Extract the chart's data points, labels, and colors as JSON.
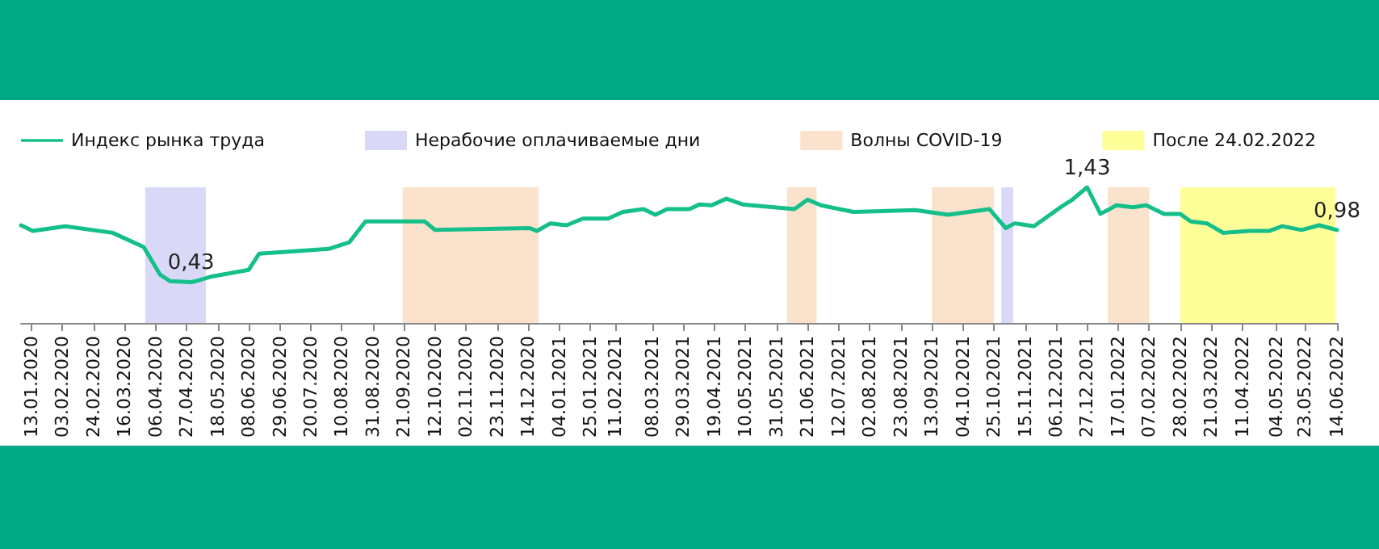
{
  "chart_data": {
    "type": "line",
    "legend": "top left",
    "marker": "none",
    "line_style": "solid",
    "grid": false,
    "tick_labels": "x",
    "xlim": [
      "2020-01-06",
      "2022-06-14"
    ],
    "xticks": [
      {
        "value": "2020-01-13",
        "label": "13.01.2020"
      },
      {
        "value": "2020-02-03",
        "label": "03.02.2020"
      },
      {
        "value": "2020-02-24",
        "label": "24.02.2020"
      },
      {
        "value": "2020-03-16",
        "label": "16.03.2020"
      },
      {
        "value": "2020-04-06",
        "label": "06.04.2020"
      },
      {
        "value": "2020-04-27",
        "label": "27.04.2020"
      },
      {
        "value": "2020-05-18",
        "label": "18.05.2020"
      },
      {
        "value": "2020-06-08",
        "label": "08.06.2020"
      },
      {
        "value": "2020-06-29",
        "label": "29.06.2020"
      },
      {
        "value": "2020-07-20",
        "label": "20.07.2020"
      },
      {
        "value": "2020-08-10",
        "label": "10.08.2020"
      },
      {
        "value": "2020-08-31",
        "label": "31.08.2020"
      },
      {
        "value": "2020-09-21",
        "label": "21.09.2020"
      },
      {
        "value": "2020-10-12",
        "label": "12.10.2020"
      },
      {
        "value": "2020-11-02",
        "label": "02.11.2020"
      },
      {
        "value": "2020-11-23",
        "label": "23.11.2020"
      },
      {
        "value": "2020-12-14",
        "label": "14.12.2020"
      },
      {
        "value": "2021-01-04",
        "label": "04.01.2021"
      },
      {
        "value": "2021-01-25",
        "label": "25.01.2021"
      },
      {
        "value": "2021-02-11",
        "label": "11.02.2021"
      },
      {
        "value": "2021-03-08",
        "label": "08.03.2021"
      },
      {
        "value": "2021-03-29",
        "label": "29.03.2021"
      },
      {
        "value": "2021-04-19",
        "label": "19.04.2021"
      },
      {
        "value": "2021-05-10",
        "label": "10.05.2021"
      },
      {
        "value": "2021-05-31",
        "label": "31.05.2021"
      },
      {
        "value": "2021-06-21",
        "label": "21.06.2021"
      },
      {
        "value": "2021-07-12",
        "label": "12.07.2021"
      },
      {
        "value": "2021-08-02",
        "label": "02.08.2021"
      },
      {
        "value": "2021-08-23",
        "label": "23.08.2021"
      },
      {
        "value": "2021-09-13",
        "label": "13.09.2021"
      },
      {
        "value": "2021-10-04",
        "label": "04.10.2021"
      },
      {
        "value": "2021-10-25",
        "label": "25.10.2021"
      },
      {
        "value": "2021-11-15",
        "label": "15.11.2021"
      },
      {
        "value": "2021-12-06",
        "label": "06.12.2021"
      },
      {
        "value": "2021-12-27",
        "label": "27.12.2021"
      },
      {
        "value": "2022-01-17",
        "label": "17.01.2022"
      },
      {
        "value": "2022-02-07",
        "label": "07.02.2022"
      },
      {
        "value": "2022-02-28",
        "label": "28.02.2022"
      },
      {
        "value": "2022-03-21",
        "label": "21.03.2022"
      },
      {
        "value": "2022-04-11",
        "label": "11.04.2022"
      },
      {
        "value": "2022-05-04",
        "label": "04.05.2022"
      },
      {
        "value": "2022-05-23",
        "label": "23.05.2022"
      },
      {
        "value": "2022-06-14",
        "label": "14.06.2022"
      }
    ],
    "series": [
      {
        "name": "Индекс рынка труда",
        "color": "#14bf8a",
        "x": [
          "2020-01-06",
          "2020-01-14",
          "2020-02-05",
          "2020-03-08",
          "2020-03-29",
          "2020-04-09",
          "2020-04-16",
          "2020-04-30",
          "2020-05-03",
          "2020-05-14",
          "2020-06-08",
          "2020-06-15",
          "2020-08-01",
          "2020-08-15",
          "2020-08-26",
          "2020-10-05",
          "2020-10-12",
          "2020-12-15",
          "2020-12-20",
          "2020-12-29",
          "2021-01-09",
          "2021-01-20",
          "2021-02-06",
          "2021-02-16",
          "2021-03-02",
          "2021-03-10",
          "2021-03-18",
          "2021-04-02",
          "2021-04-09",
          "2021-04-17",
          "2021-04-27",
          "2021-05-08",
          "2021-06-12",
          "2021-06-21",
          "2021-06-30",
          "2021-07-22",
          "2021-09-02",
          "2021-09-24",
          "2021-10-22",
          "2021-11-02",
          "2021-11-08",
          "2021-11-21",
          "2021-12-09",
          "2021-12-17",
          "2021-12-27",
          "2022-01-05",
          "2022-01-16",
          "2022-01-27",
          "2022-02-05",
          "2022-02-17",
          "2022-02-28",
          "2022-03-07",
          "2022-03-18",
          "2022-03-29",
          "2022-04-16",
          "2022-04-29",
          "2022-05-08",
          "2022-05-21",
          "2022-06-02",
          "2022-06-14"
        ],
        "values": [
          1.03,
          0.97,
          1.02,
          0.95,
          0.8,
          0.51,
          0.44,
          0.43,
          0.44,
          0.49,
          0.56,
          0.73,
          0.78,
          0.85,
          1.07,
          1.07,
          0.98,
          1.0,
          0.97,
          1.05,
          1.03,
          1.1,
          1.1,
          1.17,
          1.2,
          1.14,
          1.2,
          1.2,
          1.25,
          1.24,
          1.31,
          1.25,
          1.2,
          1.3,
          1.24,
          1.17,
          1.19,
          1.14,
          1.2,
          1.0,
          1.05,
          1.02,
          1.22,
          1.3,
          1.43,
          1.15,
          1.24,
          1.22,
          1.24,
          1.15,
          1.15,
          1.07,
          1.05,
          0.95,
          0.97,
          0.97,
          1.02,
          0.98,
          1.03,
          0.98
        ],
        "value_labels": [
          null,
          null,
          null,
          null,
          null,
          null,
          null,
          "0,43",
          null,
          null,
          null,
          null,
          null,
          null,
          null,
          null,
          null,
          null,
          null,
          null,
          null,
          null,
          null,
          null,
          null,
          null,
          null,
          null,
          null,
          null,
          null,
          null,
          null,
          null,
          null,
          null,
          null,
          null,
          null,
          null,
          null,
          null,
          null,
          null,
          "1,43",
          null,
          null,
          null,
          null,
          null,
          null,
          null,
          null,
          null,
          null,
          null,
          null,
          null,
          null,
          "0,98"
        ]
      }
    ],
    "bands": [
      {
        "axis": "x",
        "from": "2020-03-30",
        "to": "2020-05-10",
        "label": "Нерабочие оплачиваемые дни",
        "color": "#d9d9f7"
      },
      {
        "axis": "x",
        "from": "2021-10-30",
        "to": "2021-11-07",
        "color": "#d9d9f7"
      },
      {
        "axis": "x",
        "from": "2020-09-20",
        "to": "2020-12-21",
        "label": "Волны COVID-19",
        "color": "#fbe2cc"
      },
      {
        "axis": "x",
        "from": "2021-06-07",
        "to": "2021-06-27",
        "color": "#fbe2cc"
      },
      {
        "axis": "x",
        "from": "2021-09-13",
        "to": "2021-10-25",
        "color": "#fbe2cc"
      },
      {
        "axis": "x",
        "from": "2022-01-10",
        "to": "2022-02-07",
        "color": "#fbe2cc"
      },
      {
        "axis": "x",
        "from": "2022-02-28",
        "to": "2022-06-13",
        "label": "После 24.02.2022",
        "color": "#ffff99"
      }
    ]
  }
}
